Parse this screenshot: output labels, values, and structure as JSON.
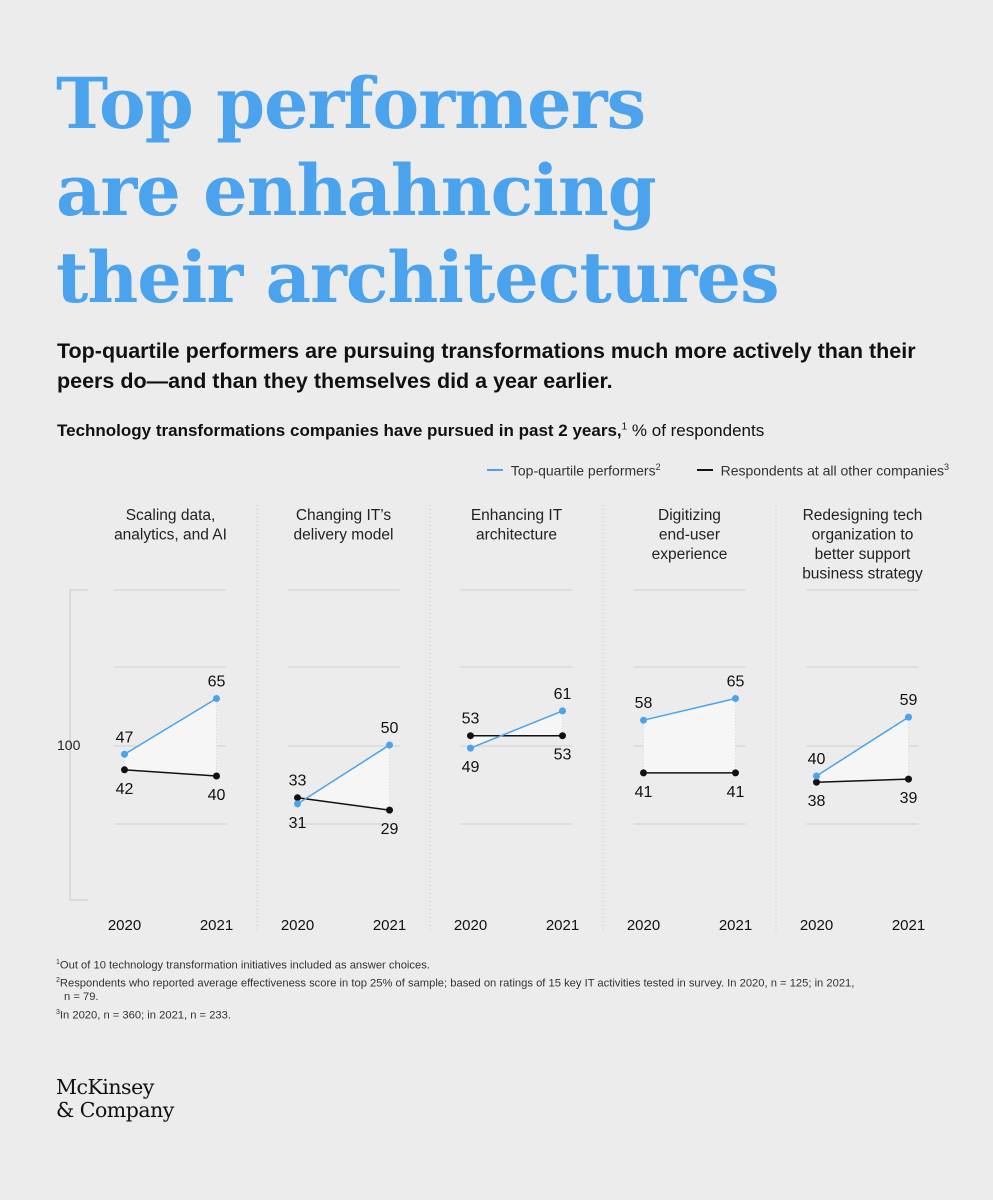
{
  "title": {
    "line1": "Top performers",
    "line2": "are enhahncing",
    "line3": "their architectures"
  },
  "subtitle": "Top-quartile performers are pursuing transformations much more actively than their peers do—and than they themselves did a year earlier.",
  "chart_label": {
    "bold": "Technology transformations companies have pursued in past 2 years,",
    "note": "1",
    "rest": " % of respondents"
  },
  "legend": {
    "top": "Top-quartile performers",
    "top_note": "2",
    "other": "Respondents at all other companies",
    "other_note": "3"
  },
  "colors": {
    "top": "#4aa3ec",
    "other": "#111111",
    "title": "#4aa3ec"
  },
  "chart_data": {
    "type": "line",
    "y_axis_label": "100",
    "years": [
      "2020",
      "2021"
    ],
    "ylim": [
      0,
      100
    ],
    "panels": [
      {
        "title": [
          "Scaling data,",
          "analytics, and AI"
        ],
        "top": [
          47,
          65
        ],
        "other": [
          42,
          40
        ]
      },
      {
        "title": [
          "Changing IT’s",
          "delivery model"
        ],
        "top": [
          31,
          50
        ],
        "other": [
          33,
          29
        ]
      },
      {
        "title": [
          "Enhancing IT",
          "architecture"
        ],
        "top": [
          49,
          61
        ],
        "other": [
          53,
          53
        ]
      },
      {
        "title": [
          "Digitizing",
          "end-user",
          "experience"
        ],
        "top": [
          58,
          65
        ],
        "other": [
          41,
          41
        ]
      },
      {
        "title": [
          "Redesigning tech",
          "organization to",
          "better support",
          "business strategy"
        ],
        "top": [
          40,
          59
        ],
        "other": [
          38,
          39
        ]
      }
    ]
  },
  "footnotes": {
    "f1": "Out of 10 technology transformation initiatives included as answer choices.",
    "f2a": "Respondents who reported average effectiveness score in top 25% of sample; based on ratings of 15 key IT activities tested in survey. In 2020, n = 125; in 2021,",
    "f2b": "n = 79.",
    "f3": "In 2020, n = 360; in 2021, n = 233."
  },
  "logo": {
    "line1": "McKinsey",
    "line2": "& Company"
  }
}
